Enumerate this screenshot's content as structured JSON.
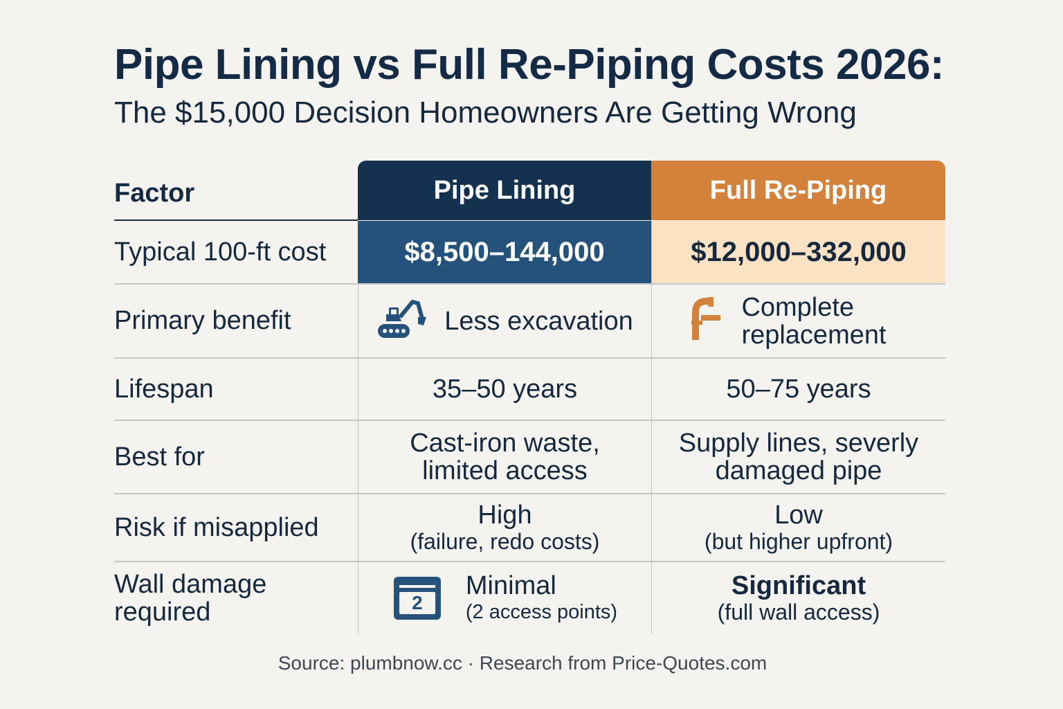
{
  "title": "Pipe Lining vs Full Re-Piping Costs 2026:",
  "subtitle": "The $15,000 Decision Homeowners Are Getting Wrong",
  "columns": {
    "factor": "Factor",
    "lining": "Pipe Lining",
    "repiping": "Full Re-Piping"
  },
  "rows": {
    "cost": {
      "factor": "Typical 100-ft cost",
      "lining": "$8,500–144,000",
      "repiping": "$12,000–332,000"
    },
    "benefit": {
      "factor": "Primary benefit",
      "lining": "Less excavation",
      "repiping_line1": "Complete",
      "repiping_line2": "replacement"
    },
    "lifespan": {
      "factor": "Lifespan",
      "lining": "35–50 years",
      "repiping": "50–75 years"
    },
    "best_for": {
      "factor": "Best for",
      "lining_line1": "Cast-iron waste,",
      "lining_line2": "limited access",
      "repiping_line1": "Supply lines, severly",
      "repiping_line2": "damaged pipe"
    },
    "risk": {
      "factor": "Risk if misapplied",
      "lining_main": "High",
      "lining_sub": "(failure, redo costs)",
      "repiping_main": "Low",
      "repiping_sub": "(but higher upfront)"
    },
    "wall": {
      "factor_line1": "Wall damage",
      "factor_line2": "required",
      "lining_main": "Minimal",
      "lining_sub": "(2 access points)",
      "lining_icon_number": "2",
      "repiping_main": "Significant",
      "repiping_sub": "(full wall access)"
    }
  },
  "icons": {
    "benefit_lining": "excavator-icon",
    "benefit_repiping": "pipe-faucet-icon",
    "wall_lining": "calendar-access-icon"
  },
  "colors": {
    "navy": "#153150",
    "blue": "#24527a",
    "orange": "#d4823b",
    "peach": "#fbe2c3",
    "background": "#f4f3ef"
  },
  "source": "Source: plumbnow.cc · Research from Price-Quotes.com"
}
